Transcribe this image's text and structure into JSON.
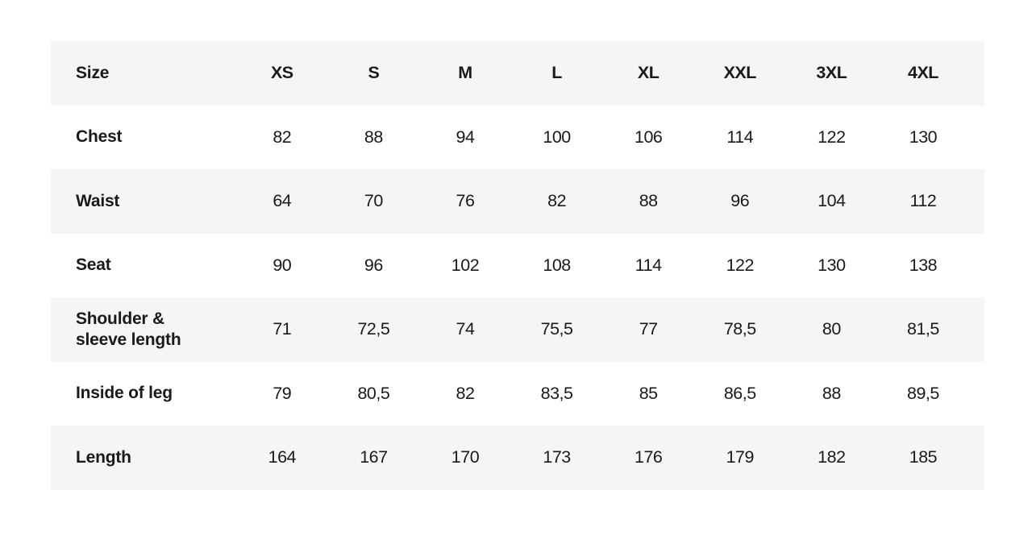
{
  "table": {
    "header": {
      "label": "Size",
      "columns": [
        "XS",
        "S",
        "M",
        "L",
        "XL",
        "XXL",
        "3XL",
        "4XL"
      ]
    },
    "rows": [
      {
        "label": "Chest",
        "values": [
          "82",
          "88",
          "94",
          "100",
          "106",
          "114",
          "122",
          "130"
        ]
      },
      {
        "label": "Waist",
        "values": [
          "64",
          "70",
          "76",
          "82",
          "88",
          "96",
          "104",
          "112"
        ]
      },
      {
        "label": "Seat",
        "values": [
          "90",
          "96",
          "102",
          "108",
          "114",
          "122",
          "130",
          "138"
        ]
      },
      {
        "label_line1": "Shoulder &",
        "label_line2": "sleeve length",
        "values": [
          "71",
          "72,5",
          "74",
          "75,5",
          "77",
          "78,5",
          "80",
          "81,5"
        ]
      },
      {
        "label": "Inside of leg",
        "values": [
          "79",
          "80,5",
          "82",
          "83,5",
          "85",
          "86,5",
          "88",
          "89,5"
        ]
      },
      {
        "label": "Length",
        "values": [
          "164",
          "167",
          "170",
          "173",
          "176",
          "179",
          "182",
          "185"
        ]
      }
    ],
    "colors": {
      "shaded_row": "#f4f5f6",
      "text": "#1a1a1a",
      "background": "#ffffff"
    }
  }
}
